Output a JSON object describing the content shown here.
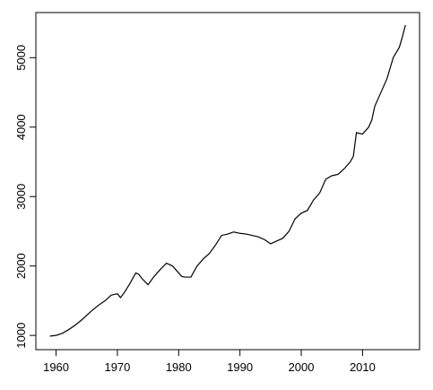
{
  "chart_data": {
    "type": "line",
    "x": [
      1959,
      1960,
      1961,
      1962,
      1963,
      1964,
      1965,
      1966,
      1967,
      1968,
      1969,
      1970,
      1970.5,
      1971,
      1972,
      1973,
      1973.5,
      1974,
      1975,
      1976,
      1977,
      1978,
      1979,
      1980,
      1980.5,
      1981,
      1982,
      1983,
      1984,
      1985,
      1986,
      1987,
      1988,
      1989,
      1990,
      1991,
      1992,
      1993,
      1994,
      1995,
      1996,
      1997,
      1998,
      1999,
      2000,
      2001,
      2002,
      2003,
      2004,
      2005,
      2006,
      2007,
      2008,
      2008.5,
      2009,
      2010,
      2011,
      2011.5,
      2012,
      2013,
      2014,
      2015,
      2016,
      2016.5,
      2017
    ],
    "series": [
      {
        "color": "#000000",
        "values": [
          990,
          1000,
          1030,
          1080,
          1140,
          1210,
          1290,
          1370,
          1440,
          1500,
          1580,
          1600,
          1545,
          1600,
          1740,
          1900,
          1880,
          1820,
          1730,
          1850,
          1950,
          2040,
          2000,
          1900,
          1850,
          1840,
          1840,
          2000,
          2100,
          2180,
          2300,
          2440,
          2460,
          2490,
          2470,
          2460,
          2440,
          2420,
          2380,
          2320,
          2360,
          2400,
          2500,
          2680,
          2760,
          2800,
          2950,
          3050,
          3250,
          3300,
          3320,
          3400,
          3500,
          3580,
          3920,
          3900,
          4000,
          4100,
          4300,
          4500,
          4700,
          5000,
          5150,
          5300,
          5470
        ]
      }
    ],
    "xlim": [
      1956.7,
      2019.3
    ],
    "ylim": [
      795,
      5650
    ],
    "xticks": [
      1960,
      1970,
      1980,
      1990,
      2000,
      2010
    ],
    "yticks": [
      1000,
      2000,
      3000,
      4000,
      5000
    ]
  }
}
